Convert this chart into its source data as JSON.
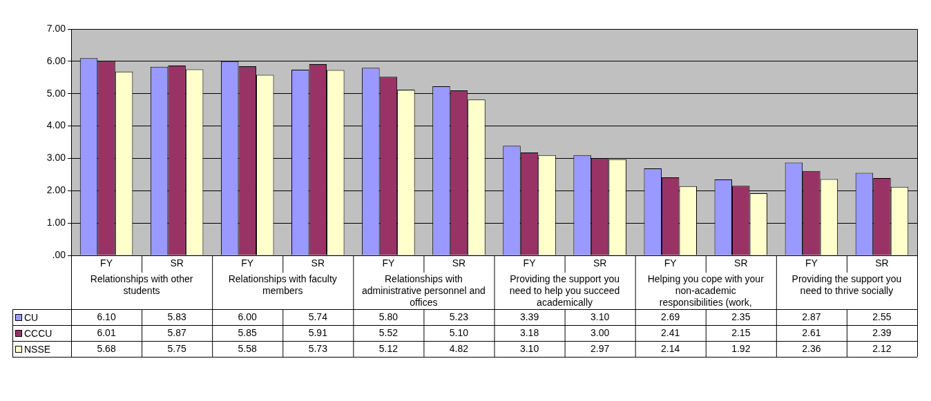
{
  "chart_data": {
    "type": "bar",
    "categories": [
      "FY",
      "SR",
      "FY",
      "SR",
      "FY",
      "SR",
      "FY",
      "SR",
      "FY",
      "SR",
      "FY",
      "SR"
    ],
    "annotations": [
      "Relationships with other students",
      "Relationships with faculty members",
      "Relationships with administrative personnel and offices",
      "Providing the support you need to help you succeed academically",
      "Helping you cope with your non-academic responsibilities (work,",
      "Providing the support you need to thrive socially"
    ],
    "series": [
      {
        "name": "CU",
        "color": "#9999ff",
        "values": [
          6.1,
          5.83,
          6.0,
          5.74,
          5.8,
          5.23,
          3.39,
          3.1,
          2.69,
          2.35,
          2.87,
          2.55
        ],
        "value_labels": [
          "6.10",
          "5.83",
          "6.00",
          "5.74",
          "5.80",
          "5.23",
          "3.39",
          "3.10",
          "2.69",
          "2.35",
          "2.87",
          "2.55"
        ]
      },
      {
        "name": "CCCU",
        "color": "#993366",
        "values": [
          6.01,
          5.87,
          5.85,
          5.91,
          5.52,
          5.1,
          3.18,
          3.0,
          2.41,
          2.15,
          2.61,
          2.39
        ],
        "value_labels": [
          "6.01",
          "5.87",
          "5.85",
          "5.91",
          "5.52",
          "5.10",
          "3.18",
          "3.00",
          "2.41",
          "2.15",
          "2.61",
          "2.39"
        ]
      },
      {
        "name": "NSSE",
        "color": "#ffffcc",
        "values": [
          5.68,
          5.75,
          5.58,
          5.73,
          5.12,
          4.82,
          3.1,
          2.97,
          2.14,
          1.92,
          2.36,
          2.12
        ],
        "value_labels": [
          "5.68",
          "5.75",
          "5.58",
          "5.73",
          "5.12",
          "4.82",
          "3.10",
          "2.97",
          "2.14",
          "1.92",
          "2.36",
          "2.12"
        ]
      }
    ],
    "ylim": [
      0,
      7
    ],
    "yticks": [
      {
        "value": 0,
        "label": ".00"
      },
      {
        "value": 1,
        "label": "1.00"
      },
      {
        "value": 2,
        "label": "2.00"
      },
      {
        "value": 3,
        "label": "3.00"
      },
      {
        "value": 4,
        "label": "4.00"
      },
      {
        "value": 5,
        "label": "5.00"
      },
      {
        "value": 6,
        "label": "6.00"
      },
      {
        "value": 7,
        "label": "7.00"
      }
    ],
    "grid": "y",
    "legend": "bottom left"
  }
}
